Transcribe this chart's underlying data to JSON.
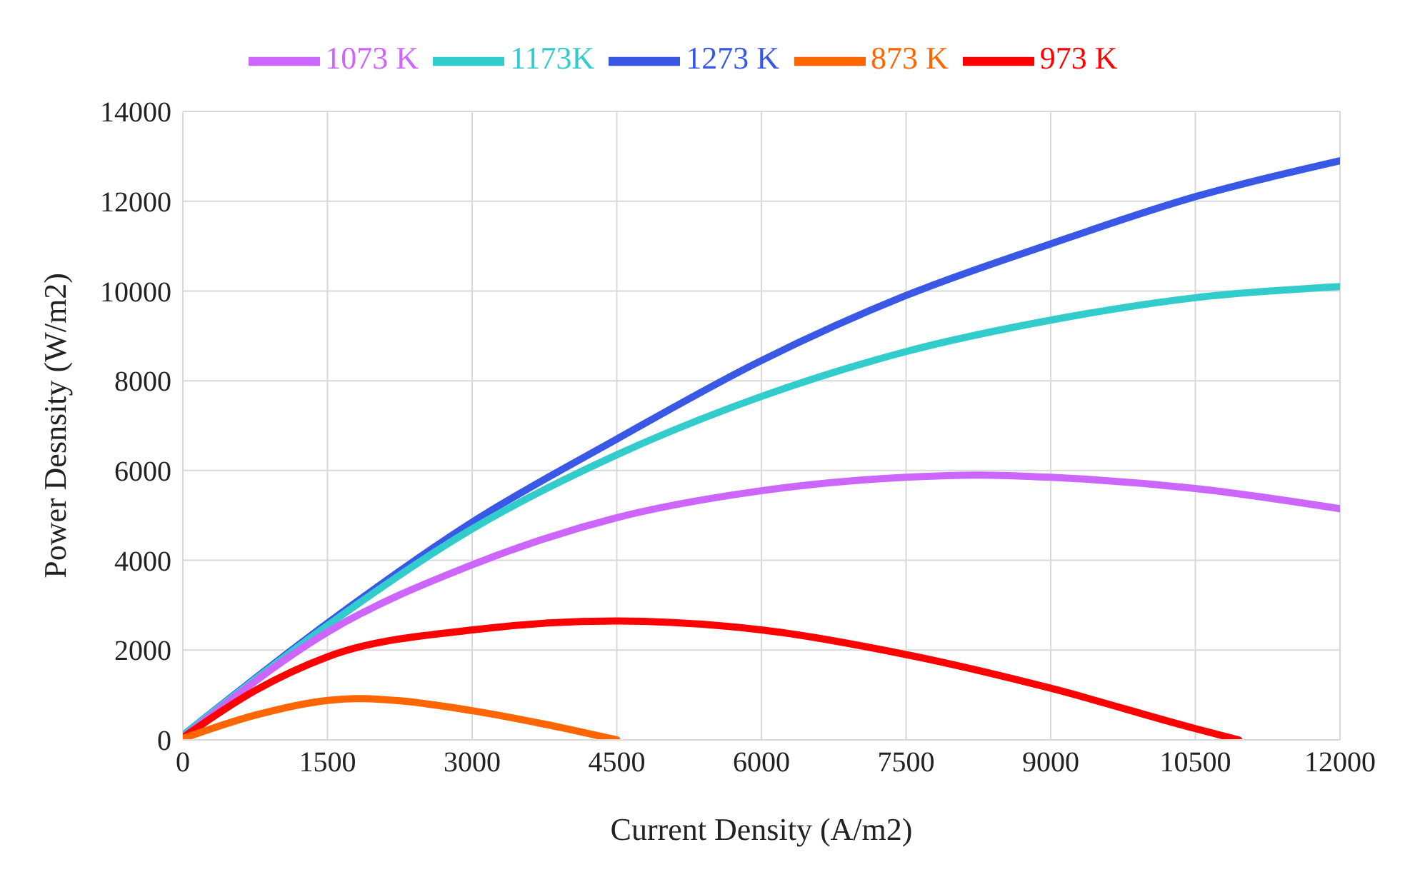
{
  "chart_data": {
    "type": "line",
    "xlabel": "Current Density (A/m2)",
    "ylabel": "Power Desnsity (W/m2)",
    "xlim": [
      0,
      12000
    ],
    "xticks": [
      0,
      1500,
      3000,
      4500,
      6000,
      7500,
      9000,
      10500,
      12000
    ],
    "ylim": [
      0,
      14000
    ],
    "yticks": [
      0,
      2000,
      4000,
      6000,
      8000,
      10000,
      12000,
      14000
    ],
    "grid": true,
    "legend": "top",
    "marker": "none",
    "line_style": "solid",
    "series": [
      {
        "name": "1273 K",
        "color": "#3a58e6",
        "x": [
          0,
          1500,
          3000,
          4500,
          6000,
          7500,
          9000,
          10500,
          12000
        ],
        "values": [
          100,
          2600,
          4850,
          6700,
          8450,
          9900,
          11050,
          12100,
          12900
        ]
      },
      {
        "name": "1173K",
        "color": "#33cccc",
        "x": [
          0,
          1500,
          3000,
          4500,
          6000,
          7500,
          9000,
          10500,
          12000
        ],
        "values": [
          100,
          2550,
          4700,
          6350,
          7650,
          8650,
          9350,
          9850,
          10100
        ]
      },
      {
        "name": "1073 K",
        "color": "#cc66ff",
        "x": [
          0,
          1500,
          3000,
          4500,
          6000,
          7500,
          8250,
          9000,
          10500,
          12000
        ],
        "values": [
          50,
          2400,
          3900,
          4950,
          5550,
          5850,
          5900,
          5850,
          5600,
          5150
        ]
      },
      {
        "name": "973 K",
        "color": "#ff0000",
        "x": [
          0,
          750,
          1500,
          3000,
          4500,
          6000,
          7500,
          9000,
          10500,
          10950
        ],
        "values": [
          50,
          1100,
          1850,
          2450,
          2650,
          2450,
          1900,
          1150,
          250,
          0
        ]
      },
      {
        "name": "873 K",
        "color": "#ff6600",
        "x": [
          0,
          750,
          1500,
          1800,
          2250,
          3000,
          3750,
          4500
        ],
        "values": [
          30,
          550,
          880,
          920,
          870,
          650,
          350,
          0
        ]
      }
    ]
  }
}
